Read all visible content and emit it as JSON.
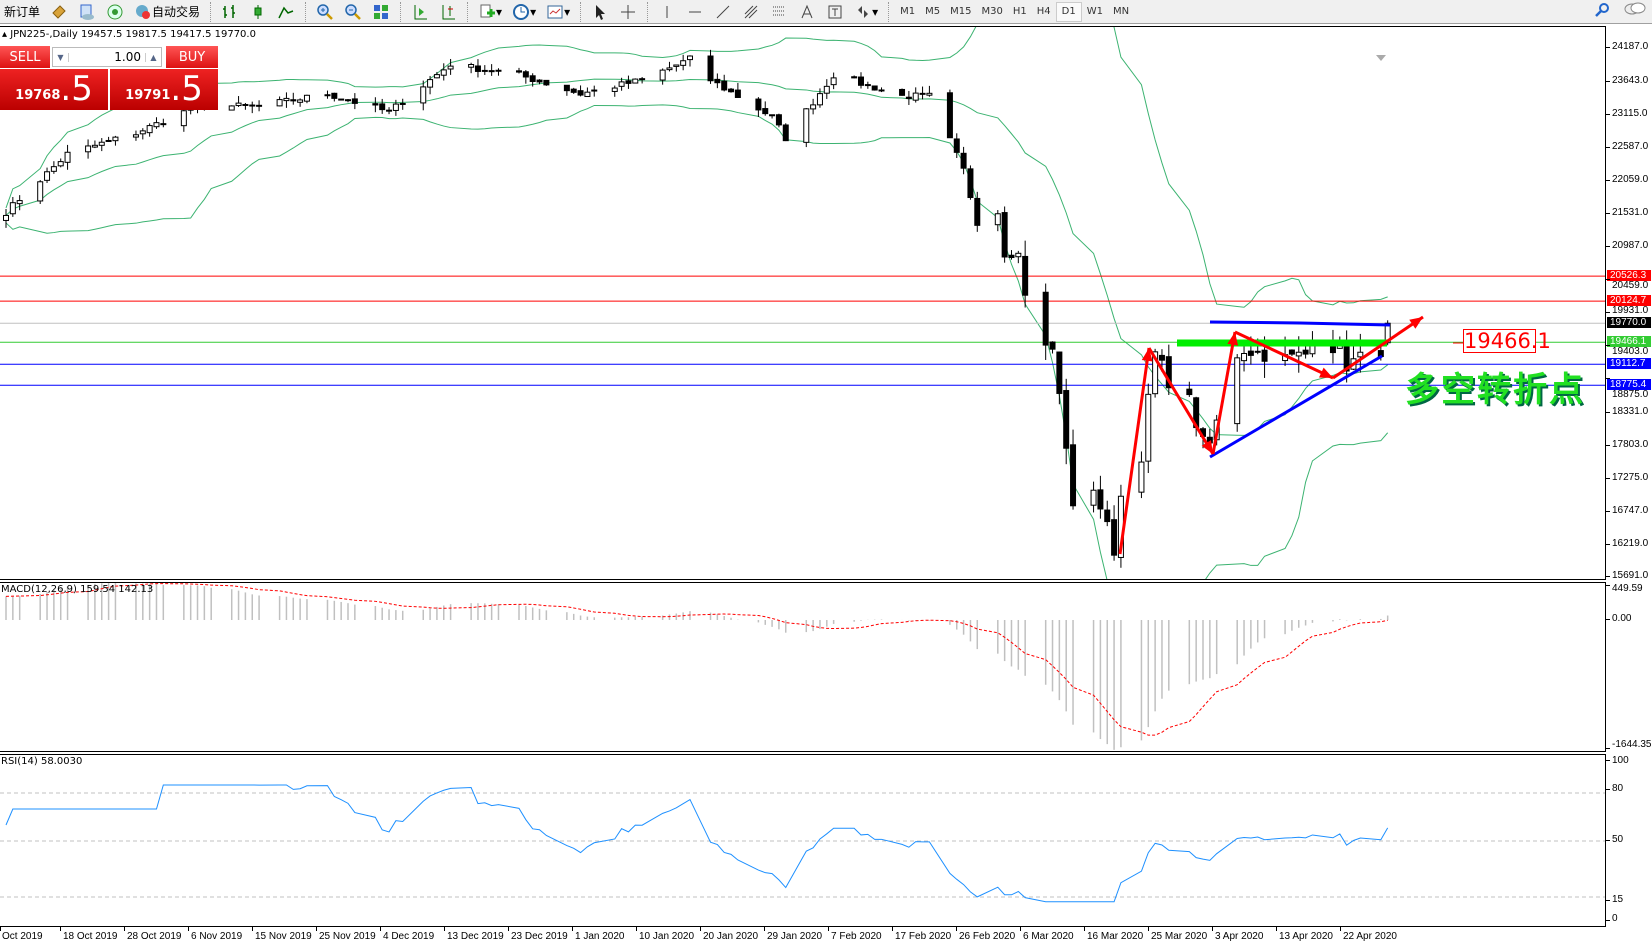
{
  "toolbar": {
    "new_order": "新订单",
    "auto_trading": "自动交易",
    "icons": [
      "market-watch-icon",
      "data-window-icon",
      "signals-icon",
      "bar-chart-icon",
      "candlestick-icon",
      "line-chart-icon",
      "zoom-in-icon",
      "zoom-out-icon",
      "tile-windows-icon",
      "autoscroll-icon",
      "chart-shift-icon",
      "indicators-icon",
      "periods-icon",
      "templates-icon",
      "cursor-icon",
      "crosshair-icon",
      "vertical-line-icon",
      "horizontal-line-icon",
      "trendline-icon",
      "fibonacci-icon",
      "grid-lines-icon",
      "text-icon",
      "text-label-icon",
      "arrows-icon"
    ],
    "timeframes": [
      "M1",
      "M5",
      "M15",
      "M30",
      "H1",
      "H4",
      "D1",
      "W1",
      "MN"
    ],
    "active_timeframe": "D1"
  },
  "chart": {
    "header": "JPN225-,Daily  19457.5 19817.5 19417.5 19770.0"
  },
  "trade_panel": {
    "sell_label": "SELL",
    "buy_label": "BUY",
    "lot": "1.00",
    "sell_price": "19768",
    "sell_price_big": ".5",
    "buy_price": "19791",
    "buy_price_big": ".5"
  },
  "price_axis": {
    "ticks": [
      "24187.0",
      "23643.0",
      "23115.0",
      "22587.0",
      "22059.0",
      "21531.0",
      "20987.0",
      "20459.0",
      "19931.0",
      "19403.0",
      "18875.0",
      "18331.0",
      "17803.0",
      "17275.0",
      "16747.0",
      "16219.0",
      "15691.0"
    ],
    "levels": [
      {
        "value": "20526.3",
        "color": "#ff0000"
      },
      {
        "value": "20124.7",
        "color": "#ff0000"
      },
      {
        "value": "19770.0",
        "color": "#000000",
        "line": "#c0c0c0"
      },
      {
        "value": "19466.1",
        "color": "#33cc33"
      },
      {
        "value": "19112.7",
        "color": "#0000ff"
      },
      {
        "value": "18775.4",
        "color": "#0000ff"
      }
    ]
  },
  "annotations": {
    "price_label": "19466.1",
    "text": "多空转折点"
  },
  "macd": {
    "label": "MACD(12,26,9) 159.54 142.13",
    "ticks": [
      "449.59",
      "0.00",
      "-1644.35"
    ]
  },
  "rsi": {
    "label": "RSI(14) 58.0030",
    "ticks": [
      "100",
      "80",
      "50",
      "15",
      "0"
    ]
  },
  "time_axis": {
    "labels": [
      "Oct 2019",
      "18 Oct 2019",
      "28 Oct 2019",
      "6 Nov 2019",
      "15 Nov 2019",
      "25 Nov 2019",
      "4 Dec 2019",
      "13 Dec 2019",
      "23 Dec 2019",
      "1 Jan 2020",
      "10 Jan 2020",
      "20 Jan 2020",
      "29 Jan 2020",
      "7 Feb 2020",
      "17 Feb 2020",
      "26 Feb 2020",
      "6 Mar 2020",
      "16 Mar 2020",
      "25 Mar 2020",
      "3 Apr 2020",
      "13 Apr 2020",
      "22 Apr 2020"
    ]
  },
  "chart_data": {
    "type": "candlestick",
    "symbol": "JPN225-",
    "period": "Daily",
    "last_ohlc": {
      "open": 19457.5,
      "high": 19817.5,
      "low": 19417.5,
      "close": 19770.0
    },
    "close_keypoints": [
      [
        "2019-10-09",
        21555
      ],
      [
        "2019-10-18",
        22486
      ],
      [
        "2019-10-28",
        22823
      ],
      [
        "2019-11-06",
        23256
      ],
      [
        "2019-11-15",
        23256
      ],
      [
        "2019-11-25",
        23449
      ],
      [
        "2019-12-04",
        23160
      ],
      [
        "2019-12-13",
        23930
      ],
      [
        "2019-12-23",
        23754
      ],
      [
        "2020-01-01",
        23450
      ],
      [
        "2020-01-10",
        23673
      ],
      [
        "2020-01-17",
        24010
      ],
      [
        "2020-01-20",
        23673
      ],
      [
        "2020-01-29",
        23080
      ],
      [
        "2020-01-31",
        22743
      ],
      [
        "2020-02-07",
        23754
      ],
      [
        "2020-02-17",
        23417
      ],
      [
        "2020-02-21",
        23417
      ],
      [
        "2020-02-26",
        22230
      ],
      [
        "2020-02-28",
        21395
      ],
      [
        "2020-03-02",
        21555
      ],
      [
        "2020-03-03",
        20880
      ],
      [
        "2020-03-05",
        20880
      ],
      [
        "2020-03-06",
        20290
      ],
      [
        "2020-03-09",
        19357
      ],
      [
        "2020-03-10",
        19357
      ],
      [
        "2020-03-12",
        17833
      ],
      [
        "2020-03-13",
        16742
      ],
      [
        "2020-03-16",
        17160
      ],
      [
        "2020-03-17",
        16823
      ],
      [
        "2020-03-19",
        16148
      ],
      [
        "2020-03-20",
        16997
      ],
      [
        "2020-03-23",
        17672
      ],
      [
        "2020-03-24",
        18522
      ],
      [
        "2020-03-25",
        19276
      ],
      [
        "2020-03-27",
        18860
      ],
      [
        "2020-03-30",
        18522
      ],
      [
        "2020-04-01",
        17833
      ],
      [
        "2020-04-02",
        17833
      ],
      [
        "2020-04-03",
        18170
      ],
      [
        "2020-04-06",
        19276
      ],
      [
        "2020-04-07",
        19357
      ],
      [
        "2020-04-13",
        19196
      ],
      [
        "2020-04-16",
        19276
      ],
      [
        "2020-04-17",
        19533
      ],
      [
        "2020-04-21",
        19357
      ],
      [
        "2020-04-22",
        19100
      ],
      [
        "2020-04-27",
        19357
      ],
      [
        "2020-04-28",
        19770
      ]
    ],
    "indicators": [
      "Bollinger Bands(20,2)",
      "MACD(12,26,9)",
      "RSI(14)"
    ],
    "colors": {
      "bands": "#3cb371",
      "macd_hist": "#c0c0c0",
      "macd_signal": "#ff0000",
      "rsi": "#1e90ff",
      "arrows": "#ff0000",
      "trendlines": "#0000ff",
      "support_zone": "#00ee00"
    }
  }
}
